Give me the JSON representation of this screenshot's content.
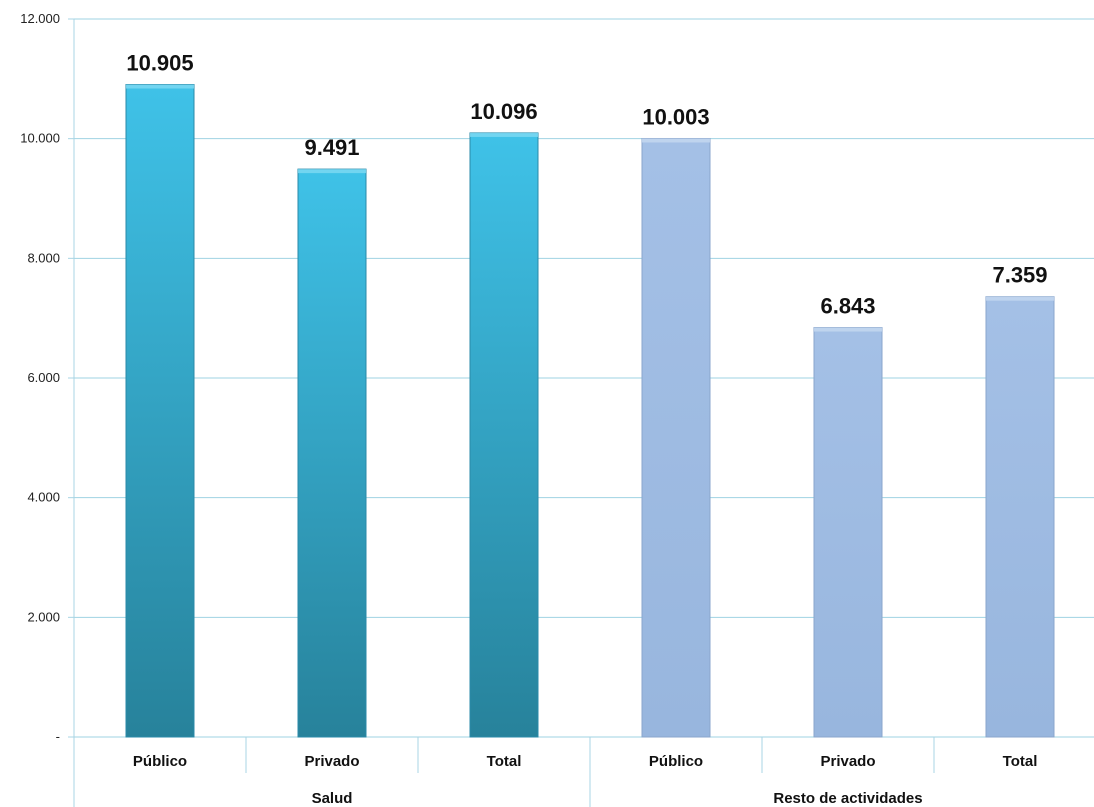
{
  "chart_data": {
    "type": "bar",
    "groups": [
      "Salud",
      "Resto de actividades"
    ],
    "categories": [
      "Público",
      "Privado",
      "Total",
      "Público",
      "Privado",
      "Total"
    ],
    "values": [
      10905,
      9491,
      10096,
      10003,
      6843,
      7359
    ],
    "data_labels": [
      "10.905",
      "9.491",
      "10.096",
      "10.003",
      "6.843",
      "7.359"
    ],
    "y_ticks": [
      "-",
      "2.000",
      "4.000",
      "6.000",
      "8.000",
      "10.000",
      "12.000"
    ],
    "y_tick_values": [
      0,
      2000,
      4000,
      6000,
      8000,
      10000,
      12000
    ],
    "ylim": [
      0,
      12000
    ],
    "grid": true,
    "colors": {
      "group_1": "#31b4dc",
      "group_2": "#9ebbe2",
      "grid": "#9fd3e3",
      "axis": "#a8d4e4"
    }
  }
}
